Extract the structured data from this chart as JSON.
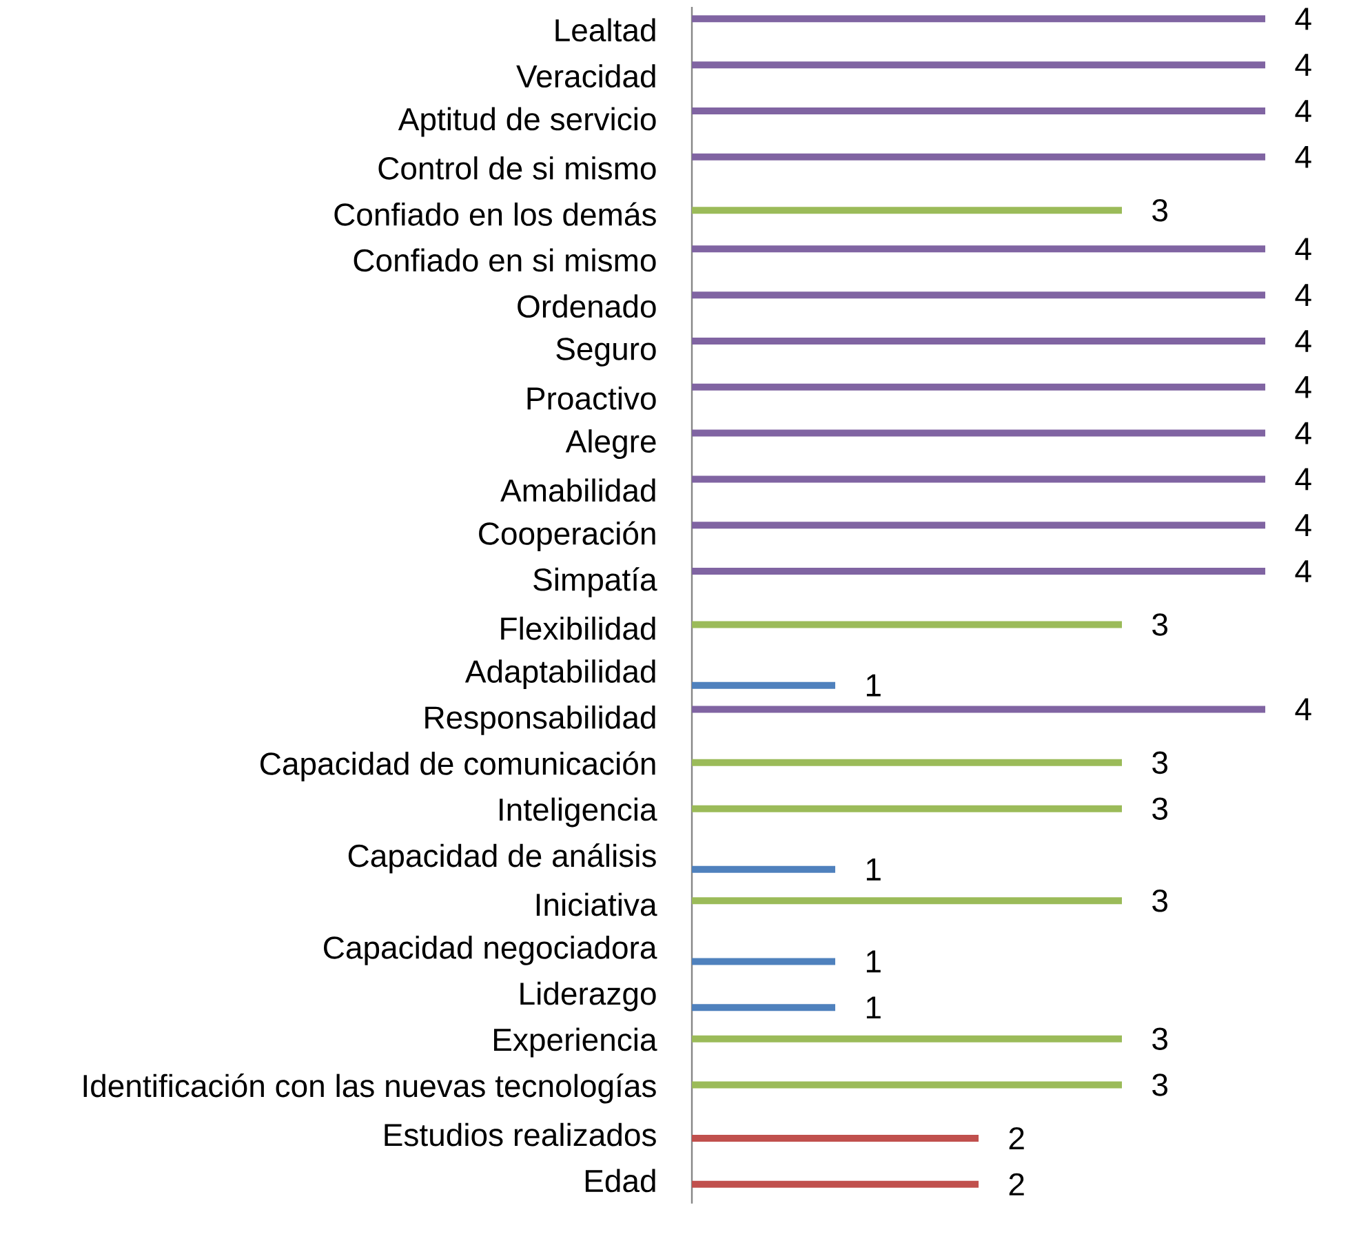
{
  "chart_data": {
    "type": "bar",
    "orientation": "horizontal",
    "categories": [
      "Lealtad",
      "Veracidad",
      "Aptitud de servicio",
      "Control de si mismo",
      "Confiado en los demás",
      "Confiado en si mismo",
      "Ordenado",
      "Seguro",
      "Proactivo",
      "Alegre",
      "Amabilidad",
      "Cooperación",
      "Simpatía",
      "Flexibilidad",
      "Adaptabilidad",
      "Responsabilidad",
      "Capacidad de comunicación",
      "Inteligencia",
      "Capacidad de análisis",
      "Iniciativa",
      "Capacidad negociadora",
      "Liderazgo",
      "Experiencia",
      "Identificación con las nuevas tecnologías",
      "Estudios realizados",
      "Edad"
    ],
    "series": [
      {
        "color": "#4f81bd",
        "values": [
          null,
          null,
          null,
          null,
          null,
          null,
          null,
          null,
          null,
          null,
          null,
          null,
          null,
          null,
          1,
          null,
          null,
          null,
          1,
          null,
          1,
          1,
          null,
          null,
          null,
          null
        ]
      },
      {
        "color": "#c0504d",
        "values": [
          null,
          null,
          null,
          null,
          null,
          null,
          null,
          null,
          null,
          null,
          null,
          null,
          null,
          null,
          null,
          null,
          null,
          null,
          null,
          null,
          null,
          null,
          null,
          null,
          2,
          2
        ]
      },
      {
        "color": "#9bbb59",
        "values": [
          null,
          null,
          null,
          null,
          3,
          null,
          null,
          null,
          null,
          null,
          null,
          null,
          null,
          3,
          null,
          null,
          3,
          3,
          null,
          3,
          null,
          null,
          3,
          3,
          null,
          null
        ]
      },
      {
        "color": "#8064a2",
        "values": [
          4,
          4,
          4,
          4,
          null,
          4,
          4,
          4,
          4,
          4,
          4,
          4,
          4,
          null,
          null,
          4,
          null,
          null,
          null,
          null,
          null,
          null,
          null,
          null,
          null,
          null
        ]
      }
    ],
    "data_labels": true,
    "tick_labels": "y"
  }
}
